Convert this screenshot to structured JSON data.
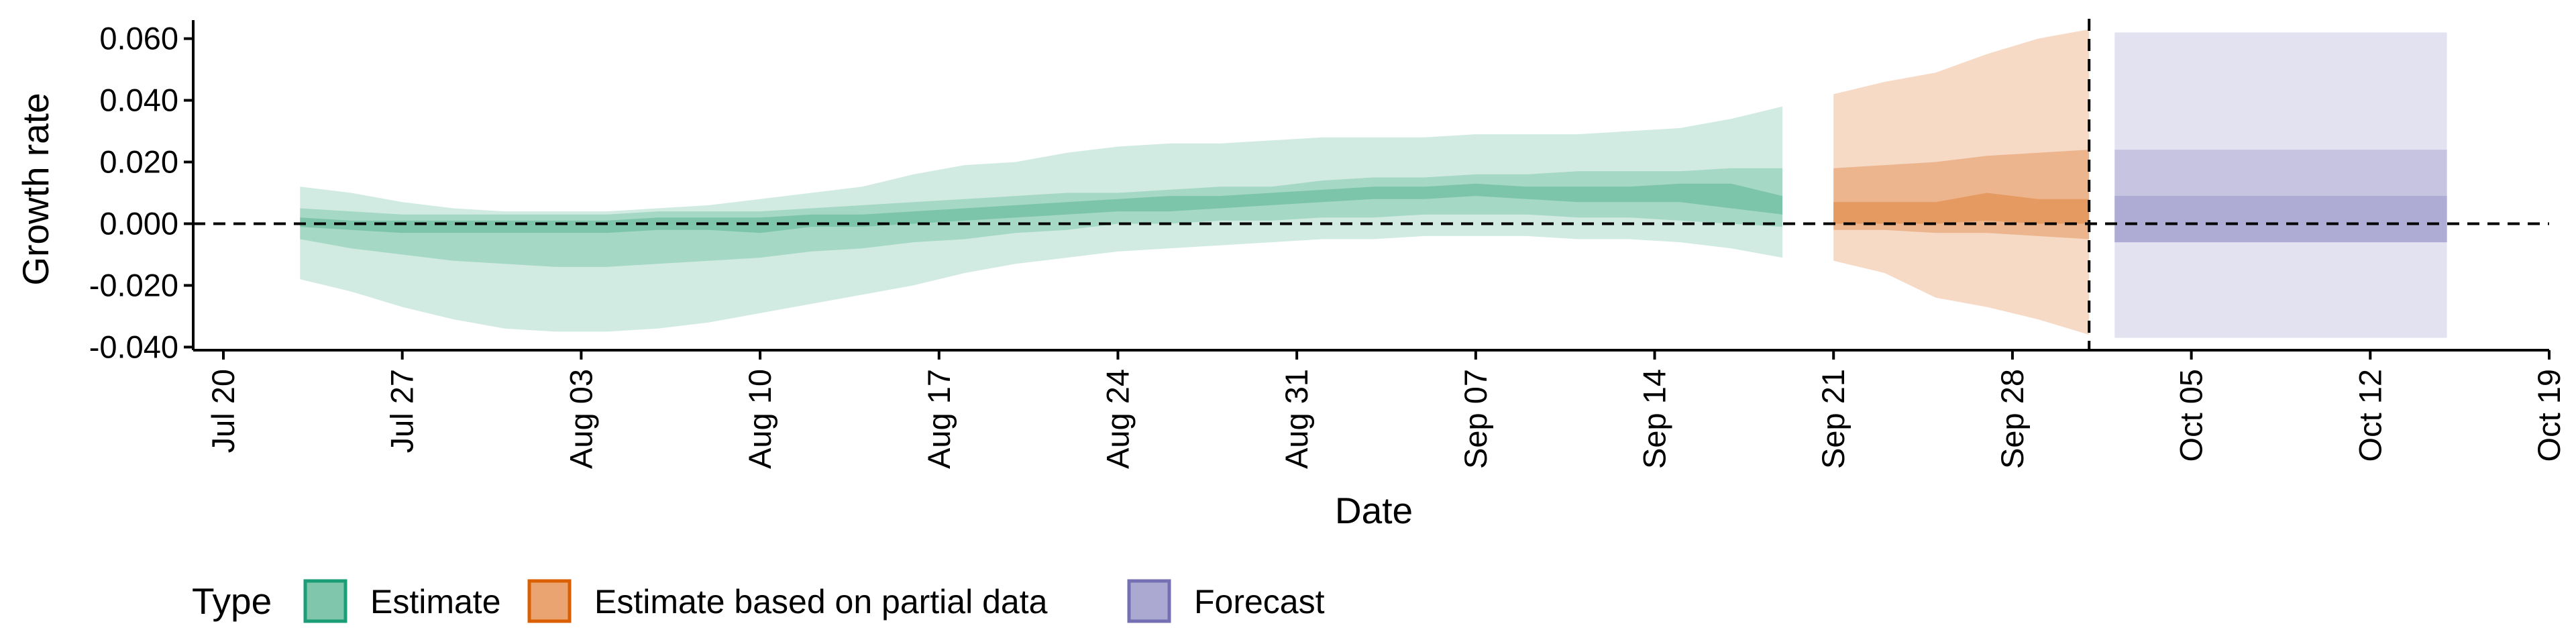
{
  "chart_data": {
    "type": "area",
    "xlabel": "Date",
    "ylabel": "Growth rate",
    "ylim": [
      -0.041,
      0.066
    ],
    "xlim": [
      "2020-07-20",
      "2020-10-19"
    ],
    "y_ticks": [
      -0.04,
      -0.02,
      0.0,
      0.02,
      0.04,
      0.06
    ],
    "y_tick_labels": [
      "-0.040",
      "-0.020",
      "0.000",
      "0.020",
      "0.040",
      "0.060"
    ],
    "x_ticks": [
      "2020-07-20",
      "2020-07-27",
      "2020-08-03",
      "2020-08-10",
      "2020-08-17",
      "2020-08-24",
      "2020-08-31",
      "2020-09-07",
      "2020-09-14",
      "2020-09-21",
      "2020-09-28",
      "2020-10-05",
      "2020-10-12",
      "2020-10-19"
    ],
    "x_tick_labels": [
      "Jul 20",
      "Jul 27",
      "Aug 03",
      "Aug 10",
      "Aug 17",
      "Aug 24",
      "Aug 31",
      "Sep 07",
      "Sep 14",
      "Sep 21",
      "Sep 28",
      "Oct 05",
      "Oct 12",
      "Oct 19"
    ],
    "reference_lines": {
      "horizontal_y": 0.0,
      "vertical_date": "2020-10-01"
    },
    "grid": false,
    "legend": {
      "title": "Type",
      "position": "bottom-left",
      "entries": [
        {
          "label": "Estimate",
          "fill": "#7fc6ad",
          "border": "#1b9e77"
        },
        {
          "label": "Estimate based on partial data",
          "fill": "#e9a471",
          "border": "#d95f02"
        },
        {
          "label": "Forecast",
          "fill": "#aba8d2",
          "border": "#7570b3"
        }
      ]
    },
    "series": [
      {
        "type_label": "Estimate",
        "colors": {
          "outer": "#d1ebe2",
          "mid": "#a6d8c6",
          "inner": "#7cc5ab"
        },
        "x": [
          "2020-07-23",
          "2020-07-25",
          "2020-07-27",
          "2020-07-29",
          "2020-07-31",
          "2020-08-02",
          "2020-08-04",
          "2020-08-06",
          "2020-08-08",
          "2020-08-10",
          "2020-08-12",
          "2020-08-14",
          "2020-08-16",
          "2020-08-18",
          "2020-08-20",
          "2020-08-22",
          "2020-08-24",
          "2020-08-26",
          "2020-08-28",
          "2020-08-30",
          "2020-09-01",
          "2020-09-03",
          "2020-09-05",
          "2020-09-07",
          "2020-09-09",
          "2020-09-11",
          "2020-09-13",
          "2020-09-15",
          "2020-09-17",
          "2020-09-19"
        ],
        "outer_lower": [
          -0.018,
          -0.022,
          -0.027,
          -0.031,
          -0.034,
          -0.035,
          -0.035,
          -0.034,
          -0.032,
          -0.029,
          -0.026,
          -0.023,
          -0.02,
          -0.016,
          -0.013,
          -0.011,
          -0.009,
          -0.008,
          -0.007,
          -0.006,
          -0.005,
          -0.005,
          -0.004,
          -0.004,
          -0.004,
          -0.005,
          -0.005,
          -0.006,
          -0.008,
          -0.011
        ],
        "mid_lower": [
          -0.005,
          -0.008,
          -0.01,
          -0.012,
          -0.013,
          -0.014,
          -0.014,
          -0.013,
          -0.012,
          -0.011,
          -0.009,
          -0.008,
          -0.006,
          -0.005,
          -0.003,
          -0.002,
          0.0,
          0.0,
          0.001,
          0.001,
          0.002,
          0.002,
          0.003,
          0.003,
          0.003,
          0.002,
          0.002,
          0.001,
          0.0,
          -0.001
        ],
        "inner_lower": [
          -0.001,
          -0.002,
          -0.003,
          -0.003,
          -0.003,
          -0.003,
          -0.003,
          -0.002,
          -0.002,
          -0.003,
          -0.001,
          -0.001,
          0.0,
          0.001,
          0.002,
          0.003,
          0.004,
          0.004,
          0.005,
          0.006,
          0.007,
          0.008,
          0.008,
          0.009,
          0.008,
          0.007,
          0.007,
          0.007,
          0.005,
          0.003
        ],
        "median": [
          0.0,
          -0.001,
          -0.001,
          -0.001,
          -0.001,
          -0.001,
          -0.001,
          0.0,
          0.0,
          -0.001,
          0.001,
          0.001,
          0.002,
          0.003,
          0.004,
          0.005,
          0.006,
          0.006,
          0.007,
          0.008,
          0.009,
          0.01,
          0.01,
          0.011,
          0.01,
          0.009,
          0.01,
          0.01,
          0.009,
          0.006
        ],
        "inner_upper": [
          0.002,
          0.001,
          0.001,
          0.001,
          0.001,
          0.001,
          0.001,
          0.002,
          0.002,
          0.002,
          0.003,
          0.003,
          0.004,
          0.005,
          0.006,
          0.007,
          0.008,
          0.009,
          0.009,
          0.01,
          0.011,
          0.012,
          0.012,
          0.013,
          0.012,
          0.012,
          0.012,
          0.013,
          0.013,
          0.009
        ],
        "mid_upper": [
          0.005,
          0.004,
          0.003,
          0.003,
          0.003,
          0.003,
          0.003,
          0.004,
          0.004,
          0.004,
          0.005,
          0.006,
          0.007,
          0.008,
          0.009,
          0.01,
          0.01,
          0.011,
          0.012,
          0.012,
          0.014,
          0.015,
          0.015,
          0.016,
          0.016,
          0.017,
          0.017,
          0.017,
          0.018,
          0.018
        ],
        "outer_upper": [
          0.012,
          0.01,
          0.007,
          0.005,
          0.004,
          0.004,
          0.004,
          0.005,
          0.006,
          0.008,
          0.01,
          0.012,
          0.016,
          0.019,
          0.02,
          0.023,
          0.025,
          0.026,
          0.026,
          0.027,
          0.028,
          0.028,
          0.028,
          0.029,
          0.029,
          0.029,
          0.03,
          0.031,
          0.034,
          0.038
        ]
      },
      {
        "type_label": "Estimate based on partial data",
        "colors": {
          "outer": "#f6dac6",
          "mid": "#edb58d",
          "inner": "#e59a62"
        },
        "x": [
          "2020-09-21",
          "2020-09-23",
          "2020-09-25",
          "2020-09-27",
          "2020-09-29",
          "2020-10-01"
        ],
        "outer_lower": [
          -0.012,
          -0.016,
          -0.024,
          -0.027,
          -0.031,
          -0.036
        ],
        "mid_lower": [
          -0.002,
          -0.002,
          -0.003,
          -0.003,
          -0.004,
          -0.005
        ],
        "inner_lower": [
          0.0,
          0.0,
          0.0,
          0.001,
          0.0,
          0.0
        ],
        "median": [
          0.003,
          0.004,
          0.004,
          0.005,
          0.004,
          0.004
        ],
        "inner_upper": [
          0.007,
          0.007,
          0.007,
          0.01,
          0.008,
          0.008
        ],
        "mid_upper": [
          0.018,
          0.019,
          0.02,
          0.022,
          0.023,
          0.024
        ],
        "outer_upper": [
          0.042,
          0.046,
          0.049,
          0.055,
          0.06,
          0.063
        ]
      },
      {
        "type_label": "Forecast",
        "colors": {
          "outer": "#e3e2f0",
          "mid": "#c6c4e1",
          "inner": "#aeabd4"
        },
        "x": [
          "2020-10-02",
          "2020-10-15"
        ],
        "outer_lower": [
          -0.037,
          -0.037
        ],
        "mid_lower": [
          -0.006,
          -0.006
        ],
        "inner_lower": [
          -0.006,
          -0.006
        ],
        "median": [
          0.002,
          0.002
        ],
        "inner_upper": [
          0.009,
          0.009
        ],
        "mid_upper": [
          0.024,
          0.024
        ],
        "outer_upper": [
          0.062,
          0.062
        ]
      }
    ]
  }
}
